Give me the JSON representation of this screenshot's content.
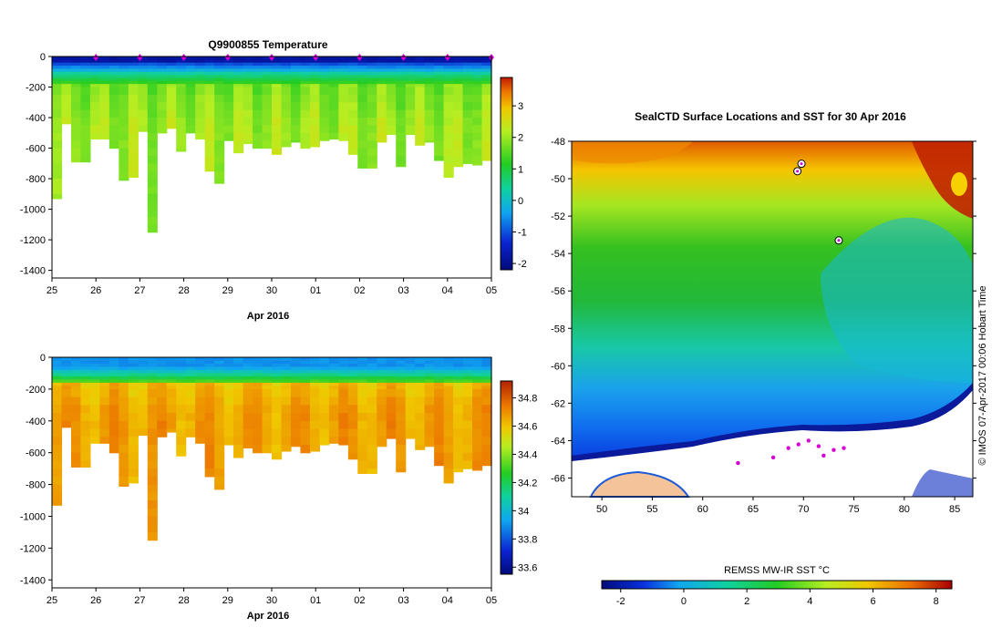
{
  "colors": {
    "frame": "#000000",
    "marker": "#d600d6",
    "land": "#f4c39a",
    "ice": "#ffffff"
  },
  "chart_data": [
    {
      "type": "heatmap",
      "title": "Q9900855  Temperature",
      "xlabel": "Apr 2016",
      "ylabel": "",
      "x_tick_labels": [
        "25",
        "26",
        "27",
        "28",
        "29",
        "30",
        "01",
        "02",
        "03",
        "04",
        "05"
      ],
      "y_tick_labels": [
        "0",
        "-200",
        "-400",
        "-600",
        "-800",
        "-1000",
        "-1200",
        "-1400"
      ],
      "ylim": [
        -1450,
        0
      ],
      "colorbar": {
        "range": [
          -2.2,
          3.9
        ],
        "tick_labels": [
          "-2",
          "-1",
          "0",
          "1",
          "2",
          "3"
        ]
      },
      "profile_count": 46,
      "profile_max_depth_m": [
        930,
        440,
        690,
        690,
        540,
        540,
        600,
        810,
        790,
        490,
        1150,
        500,
        470,
        620,
        500,
        540,
        750,
        830,
        550,
        630,
        570,
        600,
        600,
        640,
        590,
        560,
        600,
        590,
        550,
        540,
        550,
        640,
        730,
        730,
        560,
        510,
        720,
        510,
        580,
        560,
        680,
        790,
        720,
        700,
        710,
        680
      ],
      "profile_markers_days": [
        1,
        2,
        3,
        4,
        5,
        6,
        7,
        8,
        9,
        10
      ],
      "value_range_degC": [
        -2,
        3.5
      ]
    },
    {
      "type": "heatmap",
      "title": "",
      "xlabel": "Apr 2016",
      "ylabel": "",
      "x_tick_labels": [
        "25",
        "26",
        "27",
        "28",
        "29",
        "30",
        "01",
        "02",
        "03",
        "04",
        "05"
      ],
      "y_tick_labels": [
        "0",
        "-200",
        "-400",
        "-600",
        "-800",
        "-1000",
        "-1200",
        "-1400"
      ],
      "ylim": [
        -1450,
        0
      ],
      "colorbar": {
        "range": [
          33.55,
          34.92
        ],
        "tick_labels": [
          "33.6",
          "33.8",
          "34",
          "34.2",
          "34.4",
          "34.6",
          "34.8"
        ]
      },
      "value_range_psu": [
        33.8,
        34.75
      ]
    },
    {
      "type": "heatmap",
      "title": "SealCTD Surface Locations and SST for 30 Apr 2016",
      "xlabel": "",
      "ylabel": "",
      "x_tick_labels": [
        "50",
        "55",
        "60",
        "65",
        "70",
        "75",
        "80",
        "85"
      ],
      "y_tick_labels": [
        "-48",
        "-50",
        "-52",
        "-54",
        "-56",
        "-58",
        "-60",
        "-62",
        "-64",
        "-66"
      ],
      "xlim": [
        47,
        86.8
      ],
      "ylim": [
        -67,
        -48
      ],
      "colorbar": {
        "label": "REMSS MW-IR SST °C",
        "range": [
          -2.6,
          8.5
        ],
        "tick_labels": [
          "-2",
          "0",
          "2",
          "4",
          "6",
          "8"
        ]
      },
      "seal_locations": [
        [
          69.4,
          -49.6
        ],
        [
          69.8,
          -49.2
        ],
        [
          73.5,
          -53.3
        ]
      ],
      "track_points": [
        [
          63.5,
          -65.2
        ],
        [
          67.0,
          -64.9
        ],
        [
          68.5,
          -64.4
        ],
        [
          69.5,
          -64.2
        ],
        [
          70.5,
          -64.0
        ],
        [
          71.5,
          -64.3
        ],
        [
          72.0,
          -64.8
        ],
        [
          73.0,
          -64.5
        ],
        [
          74.0,
          -64.4
        ]
      ],
      "side_label": "© IMOS 07-Apr-2017 00:06 Hobart Time"
    }
  ]
}
